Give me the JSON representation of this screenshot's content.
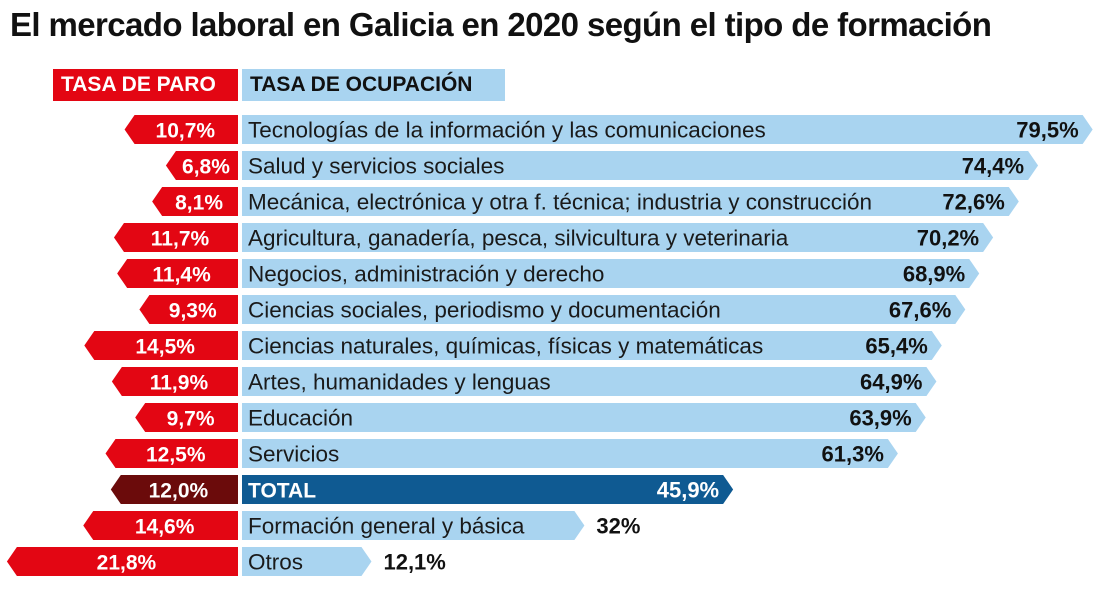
{
  "title": "El mercado laboral en Galicia en 2020 según el tipo de formación",
  "headers": {
    "paro": "TASA DE PARO",
    "ocupacion": "TASA DE OCUPACIÓN"
  },
  "colors": {
    "paro": "#e30613",
    "paro_total": "#6b0b0b",
    "ocupacion": "#a9d4f0",
    "ocupacion_total": "#0f5a92"
  },
  "chart_data": {
    "type": "bar",
    "title": "El mercado laboral en Galicia en 2020 según el tipo de formación",
    "categories": [
      "Tecnologías de la información y las comunicaciones",
      "Salud y servicios sociales",
      "Mecánica, electrónica y otra f. técnica; industria y construcción",
      "Agricultura, ganadería, pesca, silvicultura y veterinaria",
      "Negocios, administración y derecho",
      "Ciencias sociales, periodismo y documentación",
      "Ciencias naturales, químicas, físicas y matemáticas",
      "Artes, humanidades y lenguas",
      "Educación",
      "Servicios",
      "TOTAL",
      "Formación general y básica",
      "Otros"
    ],
    "highlight_category": "TOTAL",
    "series": [
      {
        "name": "TASA DE PARO",
        "values": [
          10.7,
          6.8,
          8.1,
          11.7,
          11.4,
          9.3,
          14.5,
          11.9,
          9.7,
          12.5,
          12.0,
          14.6,
          21.8
        ],
        "labels": [
          "10,7%",
          "6,8%",
          "8,1%",
          "11,7%",
          "11,4%",
          "9,3%",
          "14,5%",
          "11,9%",
          "9,7%",
          "12,5%",
          "12,0%",
          "14,6%",
          "21,8%"
        ]
      },
      {
        "name": "TASA DE OCUPACIÓN",
        "values": [
          79.5,
          74.4,
          72.6,
          70.2,
          68.9,
          67.6,
          65.4,
          64.9,
          63.9,
          61.3,
          45.9,
          32,
          12.1
        ],
        "labels": [
          "79,5%",
          "74,4%",
          "72,6%",
          "70,2%",
          "68,9%",
          "67,6%",
          "65,4%",
          "64,9%",
          "63,9%",
          "61,3%",
          "45,9%",
          "32%",
          "12,1%"
        ]
      }
    ],
    "grid": false,
    "legend": "top-left"
  }
}
